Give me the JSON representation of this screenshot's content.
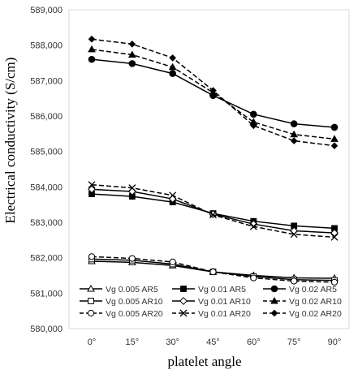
{
  "chart_data": {
    "type": "line",
    "title": "",
    "xlabel": "platelet angle",
    "ylabel": "Electrical conductivity (S/cm)",
    "categories": [
      "0°",
      "15°",
      "30°",
      "45°",
      "60°",
      "75°",
      "90°"
    ],
    "ylim": [
      580000,
      589000
    ],
    "yticks": [
      "580,000",
      "581,000",
      "582,000",
      "583,000",
      "584,000",
      "585,000",
      "586,000",
      "587,000",
      "588,000",
      "589,000"
    ],
    "ytick_values": [
      580000,
      581000,
      582000,
      583000,
      584000,
      585000,
      586000,
      587000,
      588000,
      589000
    ],
    "grid": false,
    "legend_position": "bottom",
    "series": [
      {
        "name": "Vg 0.005 AR5",
        "marker": "triangle-open",
        "dash": "solid",
        "values": [
          581900,
          581870,
          581780,
          581600,
          581500,
          581430,
          581420
        ]
      },
      {
        "name": "Vg 0.01 AR5",
        "marker": "square-filled",
        "dash": "solid",
        "values": [
          583800,
          583730,
          583570,
          583250,
          583030,
          582900,
          582830
        ]
      },
      {
        "name": "Vg 0.02 AR5",
        "marker": "circle-filled",
        "dash": "solid",
        "values": [
          587600,
          587480,
          587200,
          586580,
          586050,
          585780,
          585680
        ]
      },
      {
        "name": "Vg 0.005 AR10",
        "marker": "square-open",
        "dash": "solid",
        "values": [
          581960,
          581930,
          581820,
          581600,
          581470,
          581380,
          581360
        ]
      },
      {
        "name": "Vg 0.01 AR10",
        "marker": "diamond-open",
        "dash": "solid",
        "values": [
          583930,
          583870,
          583660,
          583230,
          582950,
          582760,
          582700
        ]
      },
      {
        "name": "Vg 0.02 AR10",
        "marker": "triangle-filled",
        "dash": "dashed",
        "values": [
          587880,
          587730,
          587380,
          586660,
          585830,
          585480,
          585350
        ]
      },
      {
        "name": "Vg 0.005 AR20",
        "marker": "circle-open",
        "dash": "dashed",
        "values": [
          582030,
          581980,
          581880,
          581600,
          581430,
          581340,
          581310
        ]
      },
      {
        "name": "Vg 0.01 AR20",
        "marker": "x",
        "dash": "dashed",
        "values": [
          584060,
          583970,
          583760,
          583210,
          582880,
          582660,
          582580
        ]
      },
      {
        "name": "Vg 0.02 AR20",
        "marker": "diamond-filled",
        "dash": "dashed",
        "values": [
          588170,
          588030,
          587640,
          586720,
          585730,
          585300,
          585160
        ]
      }
    ]
  }
}
